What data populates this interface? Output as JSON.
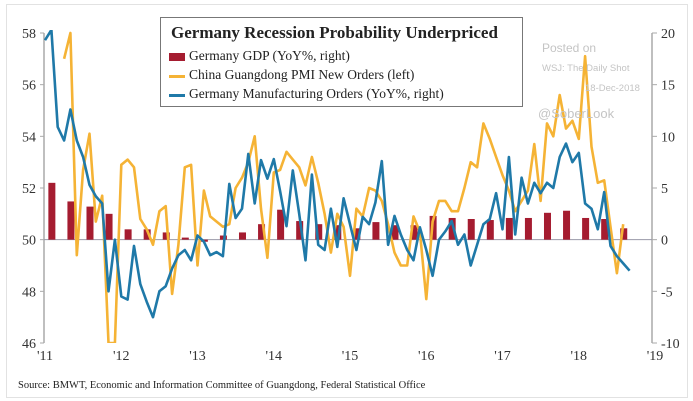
{
  "chart_data": {
    "type": "bar+line",
    "title": "Germany Recession Probability Underpriced",
    "x_tick_labels": [
      "'11",
      "'12",
      "'13",
      "'14",
      "'15",
      "'16",
      "'17",
      "'18",
      "'19"
    ],
    "x_range": [
      2011,
      2019
    ],
    "left_axis": {
      "range": [
        46,
        58
      ],
      "tick_labels": [
        "46",
        "48",
        "50",
        "52",
        "54",
        "56",
        "58"
      ]
    },
    "right_axis": {
      "range": [
        -10,
        20
      ],
      "tick_labels": [
        "-10",
        "-5",
        "0",
        "5",
        "10",
        "15",
        "20"
      ]
    },
    "grid": false,
    "legend_position": "top-center",
    "series": [
      {
        "name": "Germany GDP (YoY%, right)",
        "type": "bar",
        "axis": "right",
        "color": "#a51c30",
        "frequency": "quarterly",
        "start": "2011-Q1",
        "values": [
          5.5,
          3.7,
          3.2,
          2.5,
          1.0,
          1.0,
          0.7,
          0.2,
          -0.2,
          0.4,
          0.7,
          1.5,
          2.9,
          1.8,
          1.5,
          1.4,
          1.1,
          1.7,
          1.4,
          1.4,
          2.3,
          2.1,
          2.0,
          1.9,
          2.1,
          2.1,
          2.6,
          2.8,
          2.1,
          2.0,
          1.1
        ]
      },
      {
        "name": "China Guangdong PMI New Orders (left)",
        "type": "line",
        "axis": "left",
        "color": "#f5b335",
        "frequency": "monthly",
        "start": "2011-04",
        "values": [
          57.0,
          58.0,
          49.4,
          52.7,
          54.1,
          50.7,
          51.7,
          46.0,
          46.0,
          52.9,
          53.1,
          52.8,
          50.8,
          50.4,
          49.8,
          51.1,
          51.3,
          47.9,
          49.8,
          52.8,
          52.9,
          49.0,
          51.9,
          50.9,
          50.7,
          50.5,
          50.6,
          52.0,
          52.4,
          53.0,
          54.0,
          51.2,
          49.3,
          52.6,
          52.7,
          53.4,
          53.1,
          52.8,
          52.1,
          53.2,
          52.2,
          51.0,
          49.5,
          51.0,
          50.5,
          48.6,
          51.2,
          50.9,
          52.0,
          51.9,
          51.5,
          50.6,
          49.5,
          49.0,
          49.0,
          50.9,
          50.3,
          47.7,
          50.7,
          51.5,
          51.5,
          51.1,
          51.1,
          52.0,
          53.0,
          52.8,
          54.5,
          53.9,
          53.2,
          52.5,
          51.9,
          51.1,
          51.5,
          51.9,
          53.7,
          51.5,
          54.5,
          54.0,
          55.6,
          54.3,
          54.6,
          53.9,
          57.1,
          53.6,
          52.2,
          52.3,
          50.5,
          48.7,
          50.6
        ]
      },
      {
        "name": "Germany Manufacturing Orders (YoY%, right)",
        "type": "line",
        "axis": "right",
        "color": "#1f79a8",
        "frequency": "monthly",
        "start": "2011-01",
        "values": [
          19.3,
          20.3,
          10.9,
          9.6,
          12.6,
          9.6,
          8.0,
          5.3,
          4.2,
          3.5,
          -5.0,
          0.0,
          -5.5,
          -5.8,
          -0.6,
          -4.3,
          -6.0,
          -7.5,
          -5.0,
          -4.5,
          -2.8,
          -1.5,
          -1.0,
          -2.0,
          0.4,
          -0.2,
          -1.5,
          -1.2,
          -1.6,
          5.4,
          2.1,
          3.0,
          8.3,
          3.5,
          7.7,
          5.9,
          7.8,
          4.7,
          1.3,
          6.7,
          2.5,
          -2.0,
          6.3,
          -0.5,
          -1.0,
          3.0,
          -0.7,
          4.0,
          1.5,
          -1.0,
          2.2,
          1.5,
          3.6,
          7.6,
          -0.5,
          2.3,
          0.5,
          -1.0,
          -2.0,
          1.2,
          -1.0,
          -3.5,
          0.0,
          0.8,
          1.8,
          -0.5,
          0.5,
          -2.5,
          -0.5,
          1.5,
          2.0,
          4.5,
          1.0,
          8.0,
          0.5,
          6.0,
          3.5,
          5.5,
          4.5,
          5.5,
          5.0,
          8.0,
          9.3,
          7.5,
          8.4,
          3.5,
          3.0,
          1.0,
          4.6,
          -0.6,
          -1.6,
          -2.3,
          -3.0
        ]
      }
    ],
    "source": "Source: BMWT, Economic and Information Committee of Guangdong, Federal Statistical Office"
  },
  "watermark": {
    "posted_on": "Posted on",
    "publication": "WSJ: The Daily Shot",
    "date": "18-Dec-2018",
    "handle": "@SoberLook"
  }
}
